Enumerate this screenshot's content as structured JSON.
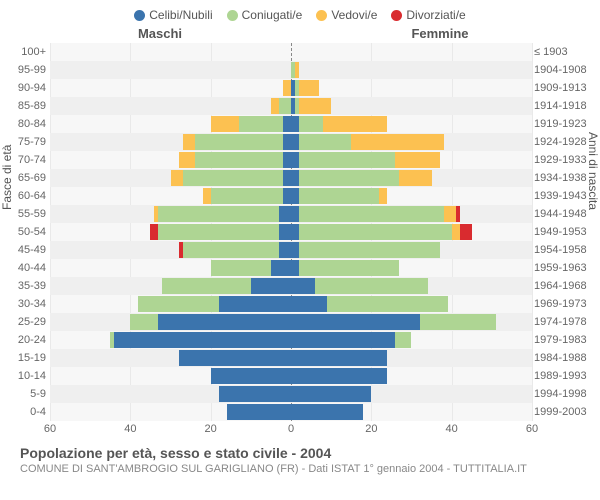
{
  "legend": [
    {
      "label": "Celibi/Nubili",
      "color": "#3b74ad"
    },
    {
      "label": "Coniugati/e",
      "color": "#aed593"
    },
    {
      "label": "Vedovi/e",
      "color": "#fcc151"
    },
    {
      "label": "Divorziati/e",
      "color": "#d92b2f"
    }
  ],
  "header_left": "Maschi",
  "header_right": "Femmine",
  "axis_left_label": "Fasce di età",
  "axis_right_label": "Anni di nascita",
  "xticks": [
    60,
    40,
    20,
    0,
    20,
    40,
    60
  ],
  "xmax": 60,
  "plot_bg": "#f7f7f7",
  "grid_color": "#e9e9e9",
  "center_line_color": "#888888",
  "row_band_color": "#efefef",
  "title": "Popolazione per età, sesso e stato civile - 2004",
  "subtitle": "COMUNE DI SANT'AMBROGIO SUL GARIGLIANO (FR) - Dati ISTAT 1° gennaio 2004 - TUTTITALIA.IT",
  "rows": [
    {
      "age": "100+",
      "birth": "≤ 1903",
      "m": {
        "c": 0,
        "m": 0,
        "w": 0,
        "d": 0
      },
      "f": {
        "c": 0,
        "m": 0,
        "w": 0,
        "d": 0
      }
    },
    {
      "age": "95-99",
      "birth": "1904-1908",
      "m": {
        "c": 0,
        "m": 0,
        "w": 0,
        "d": 0
      },
      "f": {
        "c": 0,
        "m": 1,
        "w": 1,
        "d": 0
      }
    },
    {
      "age": "90-94",
      "birth": "1909-1913",
      "m": {
        "c": 0,
        "m": 0,
        "w": 2,
        "d": 0
      },
      "f": {
        "c": 1,
        "m": 1,
        "w": 5,
        "d": 0
      }
    },
    {
      "age": "85-89",
      "birth": "1914-1918",
      "m": {
        "c": 0,
        "m": 3,
        "w": 2,
        "d": 0
      },
      "f": {
        "c": 1,
        "m": 1,
        "w": 8,
        "d": 0
      }
    },
    {
      "age": "80-84",
      "birth": "1919-1923",
      "m": {
        "c": 2,
        "m": 11,
        "w": 7,
        "d": 0
      },
      "f": {
        "c": 2,
        "m": 6,
        "w": 16,
        "d": 0
      }
    },
    {
      "age": "75-79",
      "birth": "1924-1928",
      "m": {
        "c": 2,
        "m": 22,
        "w": 3,
        "d": 0
      },
      "f": {
        "c": 2,
        "m": 13,
        "w": 23,
        "d": 0
      }
    },
    {
      "age": "70-74",
      "birth": "1929-1933",
      "m": {
        "c": 2,
        "m": 22,
        "w": 4,
        "d": 0
      },
      "f": {
        "c": 2,
        "m": 24,
        "w": 11,
        "d": 0
      }
    },
    {
      "age": "65-69",
      "birth": "1934-1938",
      "m": {
        "c": 2,
        "m": 25,
        "w": 3,
        "d": 0
      },
      "f": {
        "c": 2,
        "m": 25,
        "w": 8,
        "d": 0
      }
    },
    {
      "age": "60-64",
      "birth": "1939-1943",
      "m": {
        "c": 2,
        "m": 18,
        "w": 2,
        "d": 0
      },
      "f": {
        "c": 2,
        "m": 20,
        "w": 2,
        "d": 0
      }
    },
    {
      "age": "55-59",
      "birth": "1944-1948",
      "m": {
        "c": 3,
        "m": 30,
        "w": 1,
        "d": 0
      },
      "f": {
        "c": 2,
        "m": 36,
        "w": 3,
        "d": 1
      }
    },
    {
      "age": "50-54",
      "birth": "1949-1953",
      "m": {
        "c": 3,
        "m": 30,
        "w": 0,
        "d": 2
      },
      "f": {
        "c": 2,
        "m": 38,
        "w": 2,
        "d": 3
      }
    },
    {
      "age": "45-49",
      "birth": "1954-1958",
      "m": {
        "c": 3,
        "m": 24,
        "w": 0,
        "d": 1
      },
      "f": {
        "c": 2,
        "m": 35,
        "w": 0,
        "d": 0
      }
    },
    {
      "age": "40-44",
      "birth": "1959-1963",
      "m": {
        "c": 5,
        "m": 15,
        "w": 0,
        "d": 0
      },
      "f": {
        "c": 2,
        "m": 25,
        "w": 0,
        "d": 0
      }
    },
    {
      "age": "35-39",
      "birth": "1964-1968",
      "m": {
        "c": 10,
        "m": 22,
        "w": 0,
        "d": 0
      },
      "f": {
        "c": 6,
        "m": 28,
        "w": 0,
        "d": 0
      }
    },
    {
      "age": "30-34",
      "birth": "1969-1973",
      "m": {
        "c": 18,
        "m": 20,
        "w": 0,
        "d": 0
      },
      "f": {
        "c": 9,
        "m": 30,
        "w": 0,
        "d": 0
      }
    },
    {
      "age": "25-29",
      "birth": "1974-1978",
      "m": {
        "c": 33,
        "m": 7,
        "w": 0,
        "d": 0
      },
      "f": {
        "c": 32,
        "m": 19,
        "w": 0,
        "d": 0
      }
    },
    {
      "age": "20-24",
      "birth": "1979-1983",
      "m": {
        "c": 44,
        "m": 1,
        "w": 0,
        "d": 0
      },
      "f": {
        "c": 26,
        "m": 4,
        "w": 0,
        "d": 0
      }
    },
    {
      "age": "15-19",
      "birth": "1984-1988",
      "m": {
        "c": 28,
        "m": 0,
        "w": 0,
        "d": 0
      },
      "f": {
        "c": 24,
        "m": 0,
        "w": 0,
        "d": 0
      }
    },
    {
      "age": "10-14",
      "birth": "1989-1993",
      "m": {
        "c": 20,
        "m": 0,
        "w": 0,
        "d": 0
      },
      "f": {
        "c": 24,
        "m": 0,
        "w": 0,
        "d": 0
      }
    },
    {
      "age": "5-9",
      "birth": "1994-1998",
      "m": {
        "c": 18,
        "m": 0,
        "w": 0,
        "d": 0
      },
      "f": {
        "c": 20,
        "m": 0,
        "w": 0,
        "d": 0
      }
    },
    {
      "age": "0-4",
      "birth": "1999-2003",
      "m": {
        "c": 16,
        "m": 0,
        "w": 0,
        "d": 0
      },
      "f": {
        "c": 18,
        "m": 0,
        "w": 0,
        "d": 0
      }
    }
  ]
}
